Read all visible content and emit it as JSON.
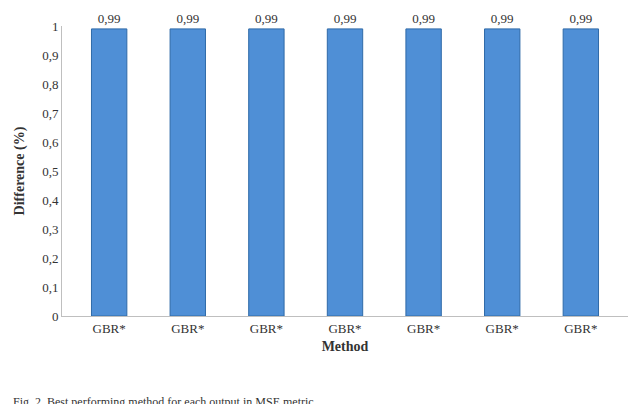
{
  "chart_data": {
    "type": "bar",
    "caption": "Fig. 2. Best performing method for each output in MSE metric",
    "x_label": "Method",
    "y_label": "Difference (%)",
    "categories": [
      "GBR*",
      "GBR*",
      "GBR*",
      "GBR*",
      "GBR*",
      "GBR*",
      "GBR*"
    ],
    "values": [
      0.99,
      0.99,
      0.99,
      0.99,
      0.99,
      0.99,
      0.99
    ],
    "value_labels": [
      "0,99",
      "0,99",
      "0,99",
      "0,99",
      "0,99",
      "0,99",
      "0,99"
    ],
    "color": "#4f8fd6",
    "ylim": [
      0,
      1
    ],
    "yticks": [
      0,
      {
        "value": 0.1,
        "label": "0,1"
      },
      {
        "value": 0.2,
        "label": "0,2"
      },
      {
        "value": 0.3,
        "label": "0,3"
      },
      {
        "value": 0.4,
        "label": "0,4"
      },
      {
        "value": 0.5,
        "label": "0,5"
      },
      {
        "value": 0.6,
        "label": "0,6"
      },
      {
        "value": 0.7,
        "label": "0,7"
      },
      {
        "value": 0.8,
        "label": "0,8"
      },
      {
        "value": 0.9,
        "label": "0,9"
      },
      1
    ],
    "grid": false,
    "data_labels": true
  }
}
